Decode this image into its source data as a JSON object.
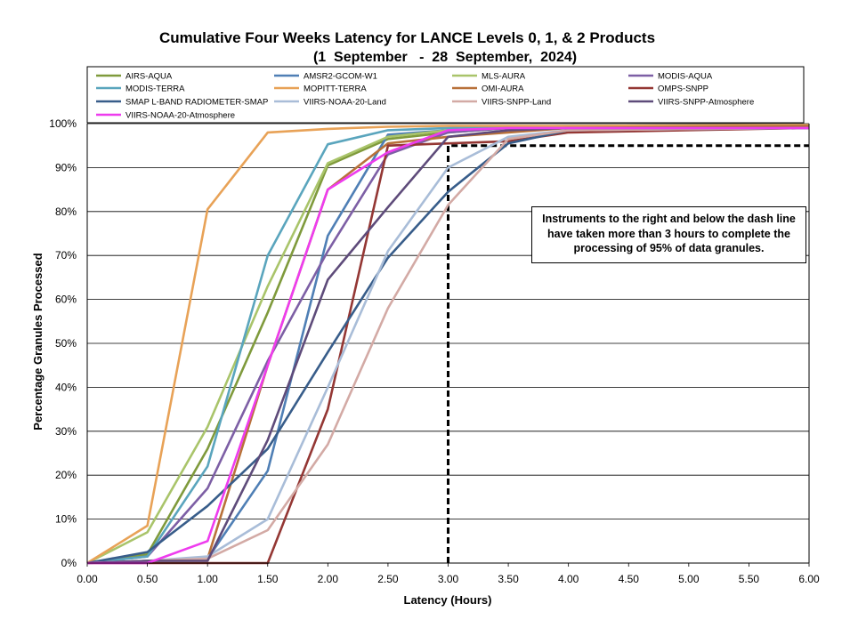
{
  "chart_data": {
    "type": "line",
    "title": "Cumulative Four Weeks Latency  for LANCE Levels 0, 1, & 2 Products",
    "subtitle": "(1  September   -  28  September,  2024)",
    "xlabel": "Latency (Hours)",
    "ylabel": "Percentage Granules Processed",
    "xlim": [
      0,
      6
    ],
    "ylim": [
      0,
      100
    ],
    "x_ticks": [
      "0.00",
      "0.50",
      "1.00",
      "1.50",
      "2.00",
      "2.50",
      "3.00",
      "3.50",
      "4.00",
      "4.50",
      "5.00",
      "5.50",
      "6.00"
    ],
    "y_ticks": [
      "0%",
      "10%",
      "20%",
      "30%",
      "40%",
      "50%",
      "60%",
      "70%",
      "80%",
      "90%",
      "100%"
    ],
    "grid": "horizontal",
    "legend_position": "top",
    "x": [
      0,
      0.5,
      1,
      1.5,
      2,
      2.5,
      3,
      3.5,
      4,
      6
    ],
    "series": [
      {
        "name": "AIRS-AQUA",
        "color": "#7f9a3c",
        "values": [
          0,
          2,
          26,
          57,
          90.5,
          96.5,
          98,
          99,
          99.3,
          99.5
        ]
      },
      {
        "name": "AMSR2-GCOM-W1",
        "color": "#4f7fb5",
        "values": [
          0,
          0.5,
          1,
          21,
          74.5,
          97.5,
          98.5,
          99,
          99.3,
          99.6
        ]
      },
      {
        "name": "MLS-AURA",
        "color": "#a9c46a",
        "values": [
          0,
          7,
          31,
          63,
          91,
          97,
          98.5,
          99,
          99.3,
          99.5
        ]
      },
      {
        "name": "MODIS-AQUA",
        "color": "#7d5fa5",
        "values": [
          0,
          1.5,
          17,
          46,
          71,
          93,
          98,
          99,
          99.3,
          99.5
        ]
      },
      {
        "name": "MODIS-TERRA",
        "color": "#5aa5bd",
        "values": [
          0,
          1.5,
          22,
          70,
          95.3,
          98.5,
          99,
          99.3,
          99.5,
          99.7
        ]
      },
      {
        "name": "MOPITT-TERRA",
        "color": "#e8a257",
        "values": [
          0,
          8.5,
          80.5,
          98,
          98.8,
          99.3,
          99.5,
          99.5,
          99.5,
          99.7
        ]
      },
      {
        "name": "OMI-AURA",
        "color": "#b8713a",
        "values": [
          0,
          0.5,
          1,
          45,
          85,
          95.5,
          97,
          98,
          99,
          99.5
        ]
      },
      {
        "name": "OMPS-SNPP",
        "color": "#943734",
        "values": [
          0,
          0,
          0,
          0,
          35,
          95,
          95.5,
          96,
          98,
          99
        ]
      },
      {
        "name": "SMAP L-BAND RADIOMETER-SMAP",
        "color": "#385d8a",
        "values": [
          0,
          2.5,
          13,
          26,
          48,
          69.5,
          84.5,
          95.5,
          98.5,
          99
        ]
      },
      {
        "name": "VIIRS-NOAA-20-Land",
        "color": "#a9bdd8",
        "values": [
          0,
          0.5,
          1.5,
          10,
          40,
          71,
          90,
          97,
          98.5,
          99
        ]
      },
      {
        "name": "VIIRS-SNPP-Land",
        "color": "#d3aaa5",
        "values": [
          0,
          0.5,
          1,
          7.5,
          27,
          58,
          81.5,
          96.5,
          98.5,
          99
        ]
      },
      {
        "name": "VIIRS-SNPP-Atmosphere",
        "color": "#5e4b7a",
        "values": [
          0,
          0.5,
          0.5,
          28,
          64.5,
          81,
          97,
          98.5,
          99,
          99
        ]
      },
      {
        "name": "VIIRS-NOAA-20-Atmosphere",
        "color": "#ee3cee",
        "values": [
          0,
          0,
          5,
          45,
          85,
          93.5,
          98.5,
          99,
          99,
          99
        ]
      }
    ],
    "threshold_line": {
      "x": 3,
      "y": 95,
      "style": "dashed",
      "color": "#000000"
    },
    "annotation": "Instruments to the right and below the dash line have taken more than 3 hours to complete the processing of 95% of data granules."
  }
}
